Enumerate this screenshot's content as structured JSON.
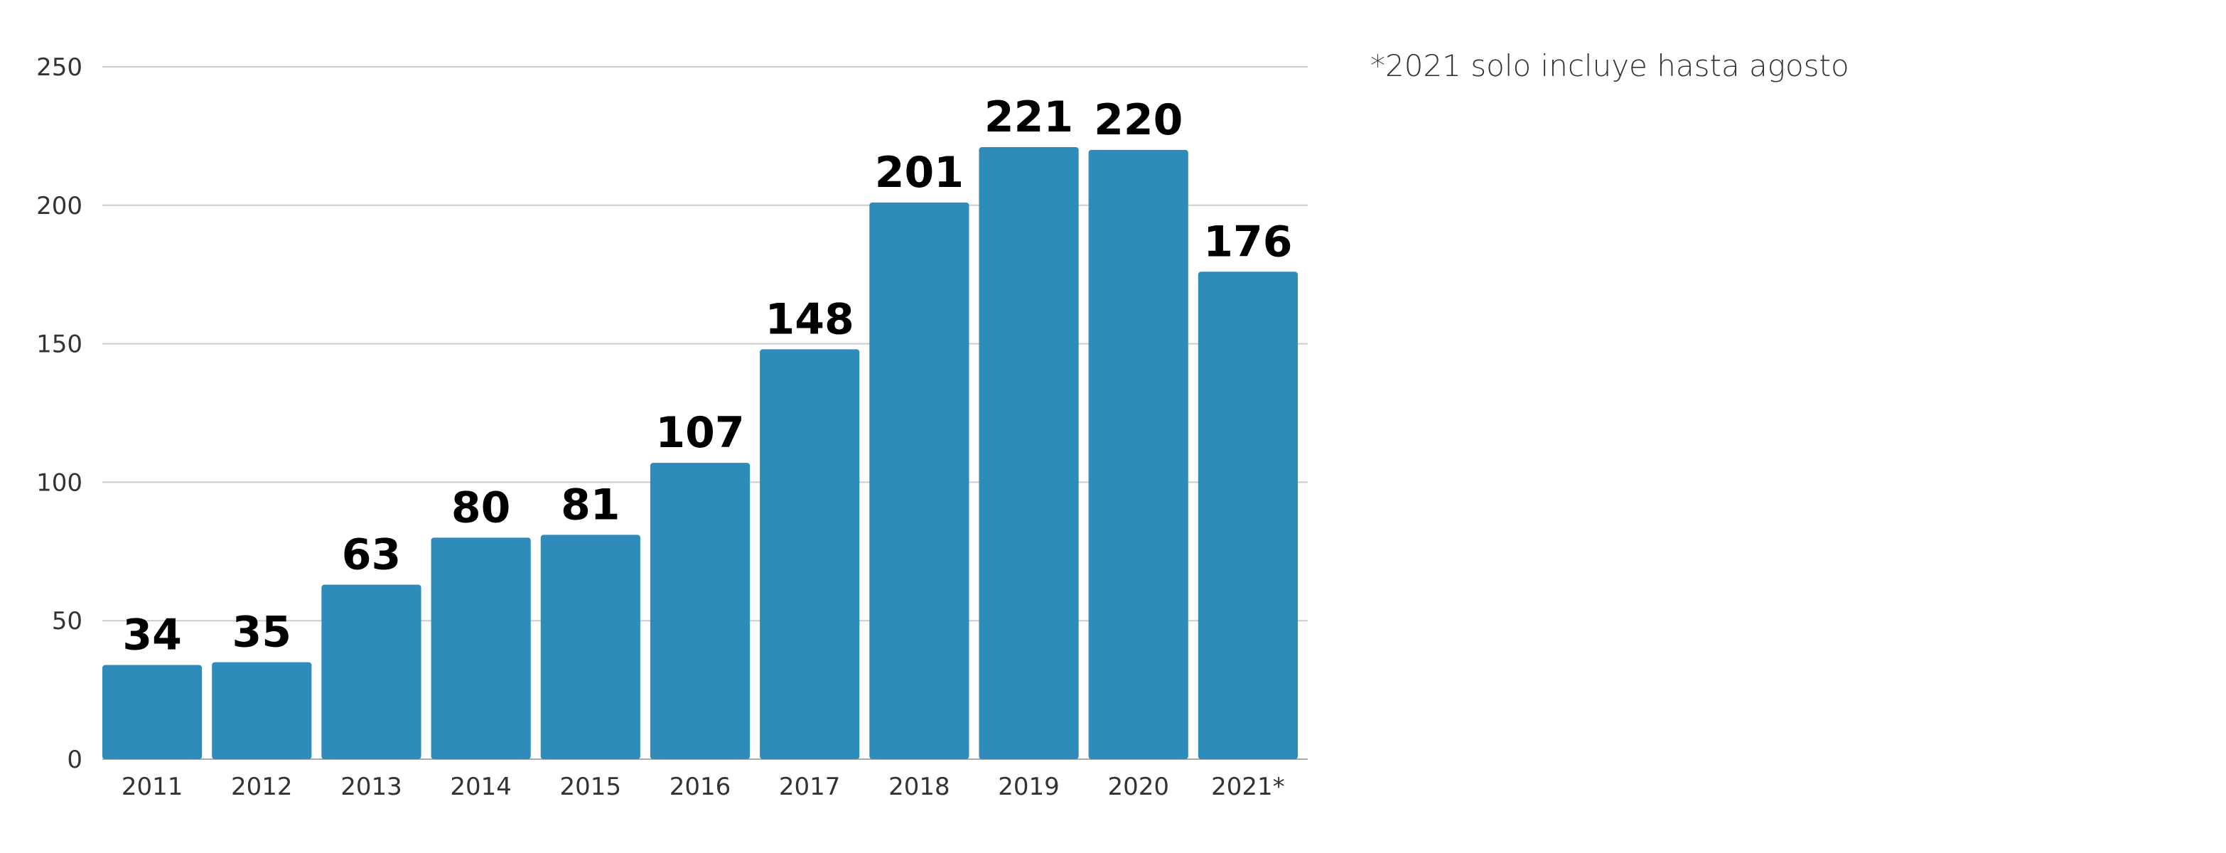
{
  "note": "*2021 solo incluye hasta agosto",
  "chart_data": {
    "type": "bar",
    "categories": [
      "2011",
      "2012",
      "2013",
      "2014",
      "2015",
      "2016",
      "2017",
      "2018",
      "2019",
      "2020",
      "2021*"
    ],
    "values": [
      34,
      35,
      63,
      80,
      81,
      107,
      148,
      201,
      221,
      220,
      176
    ],
    "data_labels": [
      "34",
      "35",
      "63",
      "80",
      "81",
      "107",
      "148",
      "201",
      "221",
      "220",
      "176"
    ],
    "yticks": [
      0,
      50,
      100,
      150,
      200,
      250
    ],
    "ylim": [
      0,
      250
    ],
    "grid": true,
    "legend": "none",
    "bar_color": "#2e8bba"
  }
}
